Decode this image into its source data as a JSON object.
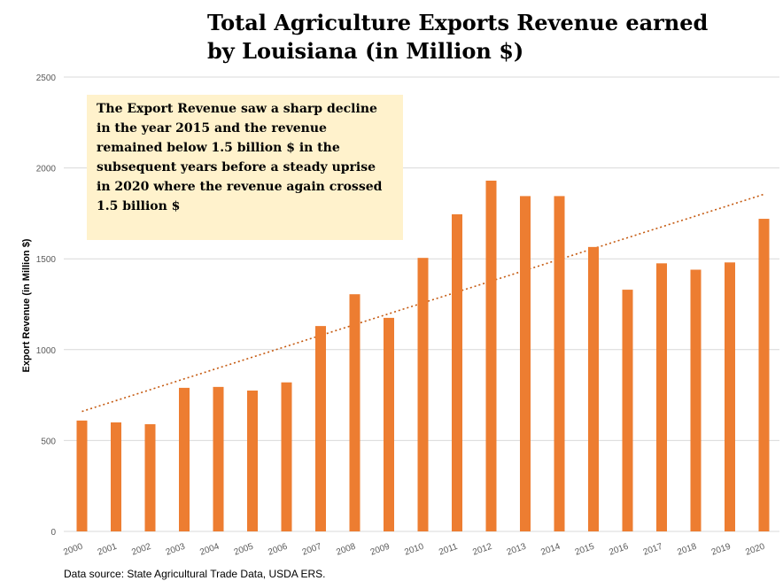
{
  "chart_data": {
    "type": "bar",
    "title_lines": [
      "Total Agriculture Exports Revenue earned",
      "by Louisiana (in Million $)"
    ],
    "xlabel": "",
    "ylabel": "Export Revenue  (in Million $)",
    "ylim": [
      0,
      2500
    ],
    "yticks": [
      0,
      500,
      1000,
      1500,
      2000,
      2500
    ],
    "grid": true,
    "legend": "none",
    "categories": [
      "2000",
      "2001",
      "2002",
      "2003",
      "2004",
      "2005",
      "2006",
      "2007",
      "2008",
      "2009",
      "2010",
      "2011",
      "2012",
      "2013",
      "2014",
      "2015",
      "2016",
      "2017",
      "2018",
      "2019",
      "2020"
    ],
    "values": [
      610,
      600,
      590,
      790,
      795,
      775,
      820,
      1130,
      1305,
      1175,
      1505,
      1745,
      1930,
      1845,
      1845,
      1565,
      1330,
      1475,
      1440,
      1480,
      1720
    ],
    "trendline": {
      "type": "linear",
      "style": "dotted",
      "start_value": 660,
      "end_value": 1855
    },
    "annotation_lines": [
      "The Export Revenue saw a sharp decline",
      "in the year 2015 and the revenue",
      "remained below 1.5 billion $ in the",
      "subsequent years before a steady uprise",
      "in 2020 where the revenue again crossed",
      "1.5 billion $"
    ],
    "source": "Data source: State Agricultural Trade Data, USDA ERS.",
    "colors": {
      "bar": "#ED7D31",
      "trendline": "#C55A11",
      "annotation_bg": "#FFF2CC",
      "grid": "#D9D9D9"
    }
  }
}
